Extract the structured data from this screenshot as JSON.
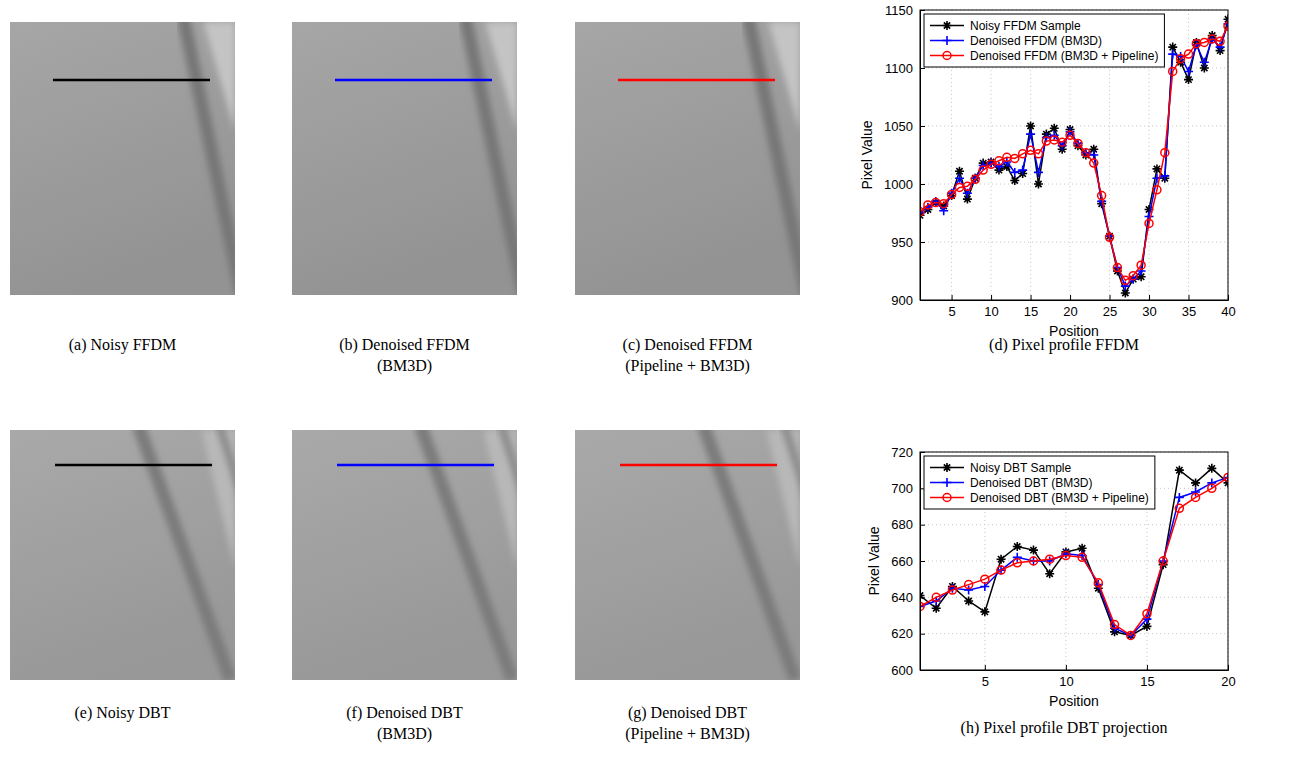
{
  "panels": [
    {
      "caption": [
        "(a) Noisy FFDM"
      ],
      "color": "#000000"
    },
    {
      "caption": [
        "(b) Denoised FFDM",
        "(BM3D)"
      ],
      "color": "#0000ff"
    },
    {
      "caption": [
        "(c) Denoised FFDM",
        "(Pipeline + BM3D)"
      ],
      "color": "#ff0000"
    },
    {
      "caption": [
        "(e) Noisy DBT"
      ],
      "color": "#000000"
    },
    {
      "caption": [
        "(f) Denoised DBT",
        "(BM3D)"
      ],
      "color": "#0000ff"
    },
    {
      "caption": [
        "(g) Denoised DBT",
        "(Pipeline + BM3D)"
      ],
      "color": "#ff0000"
    }
  ],
  "chart_data": [
    {
      "type": "line",
      "title": "(d) Pixel profile FFDM",
      "xlabel": "Position",
      "ylabel": "Pixel Value",
      "x": [
        1,
        2,
        3,
        4,
        5,
        6,
        7,
        8,
        9,
        10,
        11,
        12,
        13,
        14,
        15,
        16,
        17,
        18,
        19,
        20,
        21,
        22,
        23,
        24,
        25,
        26,
        27,
        28,
        29,
        30,
        31,
        32,
        33,
        34,
        35,
        36,
        37,
        38,
        39,
        40
      ],
      "series": [
        {
          "name": "Noisy FFDM Sample",
          "color": "#000000",
          "marker": "asterisk",
          "values": [
            973,
            978,
            984,
            981,
            990,
            1011,
            987,
            1005,
            1018,
            1019,
            1012,
            1015,
            1003,
            1009,
            1050,
            1000,
            1043,
            1048,
            1030,
            1047,
            1033,
            1025,
            1030,
            983,
            955,
            925,
            906,
            918,
            920,
            978,
            1013,
            1005,
            1118,
            1105,
            1090,
            1122,
            1100,
            1128,
            1115,
            1142
          ]
        },
        {
          "name": "Denoised FFDM (BM3D)",
          "color": "#0000ff",
          "marker": "plus",
          "values": [
            975,
            980,
            985,
            977,
            992,
            1005,
            992,
            1005,
            1016,
            1018,
            1015,
            1019,
            1010,
            1012,
            1043,
            1010,
            1040,
            1042,
            1033,
            1045,
            1035,
            1027,
            1025,
            985,
            955,
            928,
            912,
            918,
            925,
            972,
            1005,
            1007,
            1112,
            1110,
            1097,
            1120,
            1105,
            1125,
            1118,
            1138
          ]
        },
        {
          "name": "Denoised FFDM (BM3D + Pipeline)",
          "color": "#ff0000",
          "marker": "circle",
          "values": [
            976,
            982,
            984,
            983,
            991,
            997,
            998,
            1004,
            1012,
            1017,
            1020,
            1023,
            1022,
            1026,
            1029,
            1026,
            1037,
            1038,
            1036,
            1042,
            1035,
            1027,
            1018,
            990,
            954,
            928,
            917,
            921,
            930,
            966,
            995,
            1027,
            1097,
            1108,
            1112,
            1121,
            1122,
            1125,
            1123,
            1136
          ]
        }
      ],
      "xlim": [
        1,
        40
      ],
      "xticks": [
        5,
        10,
        15,
        20,
        25,
        30,
        35,
        40
      ],
      "ylim": [
        900,
        1150
      ],
      "yticks": [
        900,
        950,
        1000,
        1050,
        1100,
        1150
      ],
      "grid": true,
      "legend": "top-left"
    },
    {
      "type": "line",
      "title": "(h) Pixel profile DBT projection",
      "xlabel": "Position",
      "ylabel": "Pixel Value",
      "x": [
        1,
        2,
        3,
        4,
        5,
        6,
        7,
        8,
        9,
        10,
        11,
        12,
        13,
        14,
        15,
        16,
        17,
        18,
        19,
        20
      ],
      "series": [
        {
          "name": "Noisy DBT Sample",
          "color": "#000000",
          "marker": "asterisk",
          "values": [
            641,
            634,
            646,
            638,
            632,
            661,
            668,
            666,
            653,
            665,
            667,
            645,
            621,
            619,
            624,
            658,
            710,
            703,
            711,
            703
          ]
        },
        {
          "name": "Denoised DBT (BM3D)",
          "color": "#0000ff",
          "marker": "plus",
          "values": [
            635,
            638,
            645,
            644,
            646,
            655,
            662,
            660,
            660,
            664,
            663,
            647,
            623,
            619,
            628,
            660,
            695,
            698,
            703,
            706
          ]
        },
        {
          "name": "Denoised DBT (BM3D + Pipeline)",
          "color": "#ff0000",
          "marker": "circle",
          "values": [
            635,
            640,
            644,
            647,
            650,
            655,
            659,
            660,
            661,
            663,
            662,
            648,
            625,
            619,
            631,
            660,
            689,
            695,
            700,
            706
          ]
        }
      ],
      "xlim": [
        1,
        20
      ],
      "xticks": [
        5,
        10,
        15,
        20
      ],
      "ylim": [
        600,
        720
      ],
      "yticks": [
        600,
        620,
        640,
        660,
        680,
        700,
        720
      ],
      "grid": true,
      "legend": "top-left"
    }
  ]
}
